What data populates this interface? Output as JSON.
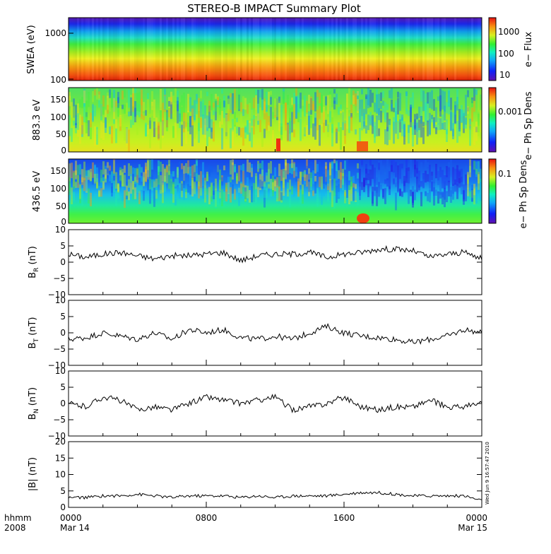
{
  "title": "STEREO-B IMPACT Summary Plot",
  "stamp": "Wed Jun 9 16:57:47 2010",
  "time_axis": {
    "row_label_1": "hhmm",
    "row_label_2": "2008",
    "ticks": [
      {
        "hours": 0,
        "line1": "0000",
        "line2": "Mar 14"
      },
      {
        "hours": 8,
        "line1": "0800",
        "line2": ""
      },
      {
        "hours": 16,
        "line1": "1600",
        "line2": ""
      },
      {
        "hours": 24,
        "line1": "0000",
        "line2": "Mar 15"
      }
    ]
  },
  "spectrograms": [
    {
      "id": "swea",
      "ylabel": "SWEA (eV)",
      "yscale": "log",
      "yticks": [
        "1000",
        "100"
      ],
      "cbar_label": "e− Flux",
      "cbar_ticks": [
        "1000",
        "100",
        "10"
      ]
    },
    {
      "id": "pad883",
      "ylabel": "883.3 eV",
      "yticks": [
        "150",
        "100",
        "50",
        "0"
      ],
      "cbar_label": "e− Ph Sp Dens",
      "cbar_ticks": [
        "0.001"
      ]
    },
    {
      "id": "pad436",
      "ylabel": "436.5 eV",
      "yticks": [
        "150",
        "100",
        "50",
        "0"
      ],
      "cbar_label": "e− Ph Sp Dens",
      "cbar_ticks": [
        "0.1"
      ]
    }
  ],
  "line_panels": [
    {
      "id": "br",
      "ylabel_main": "B",
      "ylabel_sub": "R",
      "ylabel_unit": " (nT)",
      "yticks": [
        "10",
        "5",
        "0",
        "−5",
        "−10"
      ]
    },
    {
      "id": "bt",
      "ylabel_main": "B",
      "ylabel_sub": "T",
      "ylabel_unit": " (nT)",
      "yticks": [
        "10",
        "5",
        "0",
        "−5",
        "−10"
      ]
    },
    {
      "id": "bn",
      "ylabel_main": "B",
      "ylabel_sub": "N",
      "ylabel_unit": " (nT)",
      "yticks": [
        "10",
        "5",
        "0",
        "−5",
        "−10"
      ]
    },
    {
      "id": "bmag",
      "ylabel_main": "|B|",
      "ylabel_sub": "",
      "ylabel_unit": " (nT)",
      "yticks": [
        "20",
        "15",
        "10",
        "5",
        "0"
      ]
    }
  ],
  "chart_data": [
    {
      "type": "heatmap",
      "title": "STEREO-B IMPACT Summary Plot",
      "ylabel": "SWEA (eV)",
      "yscale": "log",
      "ylim": [
        100,
        2000
      ],
      "colorbar": "e− Flux",
      "colorbar_ticks": [
        1000,
        100,
        10
      ],
      "x_range_hours": [
        0,
        24
      ]
    },
    {
      "type": "heatmap",
      "ylabel": "883.3 eV",
      "ylim": [
        0,
        180
      ],
      "colorbar": "e− Ph Sp Dens",
      "colorbar_ticks": [
        0.001
      ]
    },
    {
      "type": "heatmap",
      "ylabel": "436.5 eV",
      "ylim": [
        0,
        180
      ],
      "colorbar": "e− Ph Sp Dens",
      "colorbar_ticks": [
        0.1
      ]
    },
    {
      "type": "line",
      "ylabel": "BR (nT)",
      "ylim": [
        -10,
        10
      ],
      "x_unit": "hours from 2008 Mar 14 0000",
      "x": [
        0,
        1,
        2,
        3,
        4,
        5,
        6,
        7,
        8,
        9,
        10,
        11,
        12,
        13,
        14,
        15,
        16,
        17,
        18,
        19,
        20,
        21,
        22,
        23,
        24
      ],
      "y": [
        2.5,
        1.5,
        2.5,
        3,
        2,
        1,
        2,
        2,
        2.5,
        3,
        0.5,
        2,
        2.5,
        2.5,
        3,
        1.5,
        2.5,
        3,
        4,
        4,
        3.5,
        1.5,
        2.5,
        3,
        1
      ]
    },
    {
      "type": "line",
      "ylabel": "BT (nT)",
      "ylim": [
        -10,
        10
      ],
      "x": [
        0,
        1,
        2,
        3,
        4,
        5,
        6,
        7,
        8,
        9,
        10,
        11,
        12,
        13,
        14,
        15,
        16,
        17,
        18,
        19,
        20,
        21,
        22,
        23,
        24
      ],
      "y": [
        -2,
        -1.5,
        0,
        -1,
        -2,
        0,
        -2,
        1,
        0,
        1,
        -1.5,
        -2,
        -1,
        -2,
        0,
        2,
        0,
        -1,
        -1.5,
        -2,
        -3,
        -2,
        -1,
        1,
        0
      ]
    },
    {
      "type": "line",
      "ylabel": "BN (nT)",
      "ylim": [
        -10,
        10
      ],
      "x": [
        0,
        1,
        2,
        3,
        4,
        5,
        6,
        7,
        8,
        9,
        10,
        11,
        12,
        13,
        14,
        15,
        16,
        17,
        18,
        19,
        20,
        21,
        22,
        23,
        24
      ],
      "y": [
        0,
        -1,
        2,
        1,
        -2,
        -1,
        -2,
        0,
        2,
        1,
        0,
        1,
        2,
        -2,
        -1,
        0,
        2,
        -1,
        -2,
        -1,
        -1,
        1,
        -1,
        -1,
        0
      ]
    },
    {
      "type": "line",
      "ylabel": "|B| (nT)",
      "ylim": [
        0,
        20
      ],
      "x": [
        0,
        1,
        2,
        3,
        4,
        5,
        6,
        7,
        8,
        9,
        10,
        11,
        12,
        13,
        14,
        15,
        16,
        17,
        18,
        19,
        20,
        21,
        22,
        23,
        24
      ],
      "y": [
        3,
        3,
        3.5,
        3.5,
        4,
        3.5,
        3,
        3.5,
        3.5,
        3.5,
        3,
        3.5,
        3,
        3.5,
        3.5,
        3.5,
        4,
        4.5,
        4.5,
        4,
        3.5,
        3.5,
        3.5,
        3.5,
        2
      ]
    }
  ]
}
